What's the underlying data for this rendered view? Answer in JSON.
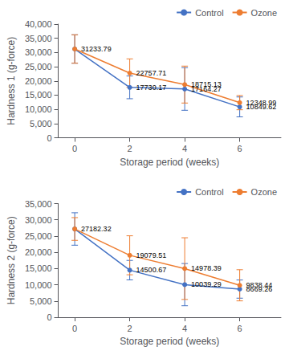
{
  "chart_data": [
    {
      "type": "line",
      "xlabel": "Storage period (weeks)",
      "ylabel": "Hardness 1 (g-force)",
      "x": [
        0,
        2,
        4,
        6
      ],
      "xlim": [
        -0.6,
        7.5
      ],
      "xticks": [
        0,
        2,
        4,
        6
      ],
      "ylim": [
        0,
        40000
      ],
      "yticks": [
        0,
        {
          "value": 5000,
          "label": "5,000"
        },
        {
          "value": 10000,
          "label": "10,000"
        },
        {
          "value": 15000,
          "label": "15,000"
        },
        {
          "value": 20000,
          "label": "20,000"
        },
        {
          "value": 25000,
          "label": "25,000"
        },
        {
          "value": 30000,
          "label": "30,000"
        },
        {
          "value": 35000,
          "label": "35,000"
        },
        {
          "value": 40000,
          "label": "40,000"
        }
      ],
      "grid": false,
      "legend": "upper right",
      "marker": "circle",
      "data_labels": true,
      "series": [
        {
          "name": "Control",
          "color": "#4472c4",
          "values": [
            31233.79,
            17730.17,
            17164.27,
            10849.62
          ],
          "errors": [
            5000,
            4000,
            7500,
            3500
          ],
          "value_labels": [
            null,
            "17730.17",
            "17164.27",
            "10849.62"
          ]
        },
        {
          "name": "Ozone",
          "color": "#ed7d31",
          "values": [
            31233.79,
            22757.71,
            18715.13,
            12348.99
          ],
          "errors": [
            5000,
            5000,
            6500,
            2500
          ],
          "value_labels": [
            "31233.79",
            "22757.71",
            "18715.13",
            "12348.99"
          ]
        }
      ]
    },
    {
      "type": "line",
      "xlabel": "Storage period (weeks)",
      "ylabel": "Hardness 2 (g-force)",
      "x": [
        0,
        2,
        4,
        6
      ],
      "xlim": [
        -0.6,
        7.5
      ],
      "xticks": [
        0,
        2,
        4,
        6
      ],
      "ylim": [
        0,
        35000
      ],
      "yticks": [
        0,
        {
          "value": 5000,
          "label": "5,000"
        },
        {
          "value": 10000,
          "label": "10,000"
        },
        {
          "value": 15000,
          "label": "15,000"
        },
        {
          "value": 20000,
          "label": "20,000"
        },
        {
          "value": 25000,
          "label": "25,000"
        },
        {
          "value": 30000,
          "label": "30,000"
        },
        {
          "value": 35000,
          "label": "35,000"
        }
      ],
      "grid": false,
      "legend": "upper right",
      "marker": "circle",
      "data_labels": true,
      "series": [
        {
          "name": "Control",
          "color": "#4472c4",
          "values": [
            27182.32,
            14500.67,
            10039.29,
            8669.26
          ],
          "errors": [
            5000,
            3000,
            6500,
            2800
          ],
          "value_labels": [
            null,
            "14500.67",
            "10039.29",
            "8669.26"
          ]
        },
        {
          "name": "Ozone",
          "color": "#ed7d31",
          "values": [
            27182.32,
            19079.51,
            14978.39,
            9838.44
          ],
          "errors": [
            3500,
            6000,
            9500,
            4800
          ],
          "value_labels": [
            "27182.32",
            "19079.51",
            "14978.39",
            "9838.44"
          ]
        }
      ]
    }
  ]
}
